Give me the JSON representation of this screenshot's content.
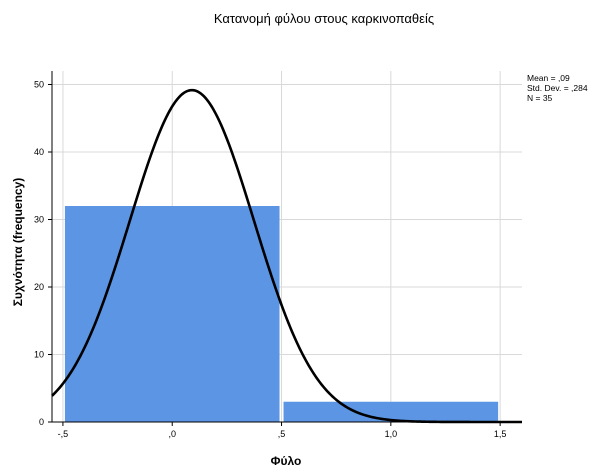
{
  "chart_data": {
    "type": "bar",
    "title": "Κατανομή φύλου στους καρκινοπαθείς",
    "xlabel": "Φύλο",
    "ylabel": "Συχνότητα (frequency)",
    "xlim": [
      -0.55,
      1.6
    ],
    "ylim": [
      0,
      52
    ],
    "x_ticks": [
      -0.5,
      0.0,
      0.5,
      1.0,
      1.5
    ],
    "x_tick_labels": [
      "-,5",
      ",0",
      ",5",
      "1,0",
      "1,5"
    ],
    "y_ticks": [
      0,
      10,
      20,
      30,
      40,
      50
    ],
    "y_tick_labels": [
      "0",
      "10",
      "20",
      "30",
      "40",
      "50"
    ],
    "bins": [
      {
        "x0": -0.5,
        "x1": 0.5,
        "count": 32
      },
      {
        "x0": 0.5,
        "x1": 1.5,
        "count": 3
      }
    ],
    "normal_curve": {
      "mean": 0.09,
      "std_dev": 0.284,
      "n": 35,
      "bin_width": 1.0
    },
    "stats": {
      "mean": "Mean = ,09",
      "std_dev": "Std. Dev. = ,284",
      "n": "N = 35"
    },
    "grid": true,
    "colors": {
      "bar": "#5b95e4",
      "curve": "#000000",
      "grid": "#d9d9d9",
      "plot_bg": "#ffffff"
    }
  }
}
